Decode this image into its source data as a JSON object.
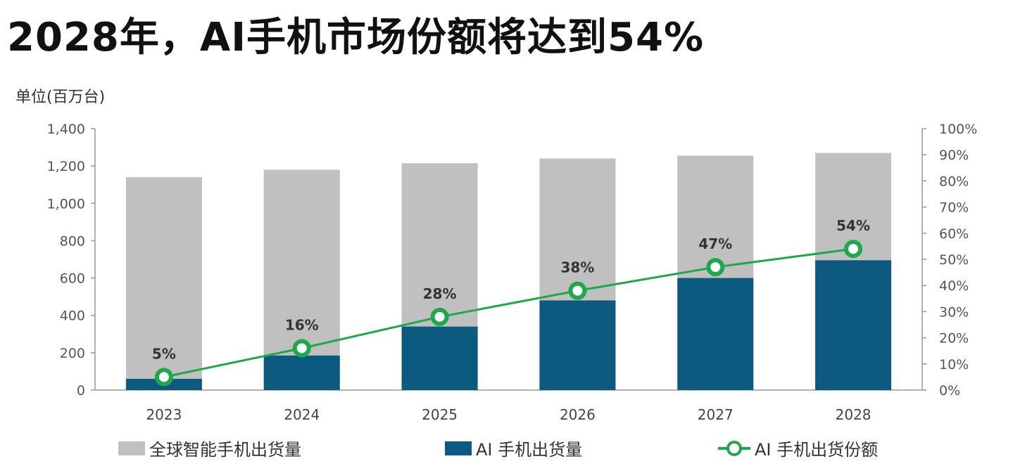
{
  "headline": "2028年，AI手机市场份额将达到54%",
  "colors": {
    "total": "#c0c0c0",
    "ai": "#0d5a80",
    "share": "#1ea84a",
    "axis": "#999999"
  },
  "chart_data": {
    "type": "bar",
    "title": "2028年，AI手机市场份额将达到54%",
    "unit_label": "单位(百万台)",
    "categories": [
      "2023",
      "2024",
      "2025",
      "2026",
      "2027",
      "2028"
    ],
    "series": [
      {
        "name": "全球智能手机出货量",
        "kind": "bar",
        "axis": "left",
        "values": [
          1140,
          1180,
          1215,
          1240,
          1255,
          1270
        ]
      },
      {
        "name": "AI 手机出货量",
        "kind": "bar",
        "axis": "left",
        "values": [
          60,
          185,
          340,
          480,
          600,
          695
        ]
      },
      {
        "name": "AI 手机出货份额",
        "kind": "line",
        "axis": "right",
        "values": [
          5,
          16,
          28,
          38,
          47,
          54
        ]
      }
    ],
    "data_labels": [
      "5%",
      "16%",
      "28%",
      "38%",
      "47%",
      "54%"
    ],
    "y_left": {
      "min": 0,
      "max": 1400,
      "ticks": [
        "0",
        "200",
        "400",
        "600",
        "800",
        "1,000",
        "1,200",
        "1,400"
      ]
    },
    "y_right": {
      "min": 0,
      "max": 100,
      "ticks": [
        "0%",
        "10%",
        "20%",
        "30%",
        "40%",
        "50%",
        "60%",
        "70%",
        "80%",
        "90%",
        "100%"
      ]
    },
    "legend": {
      "total": "全球智能手机出货量",
      "ai": "AI 手机出货量",
      "share": "AI 手机出货份额"
    }
  }
}
